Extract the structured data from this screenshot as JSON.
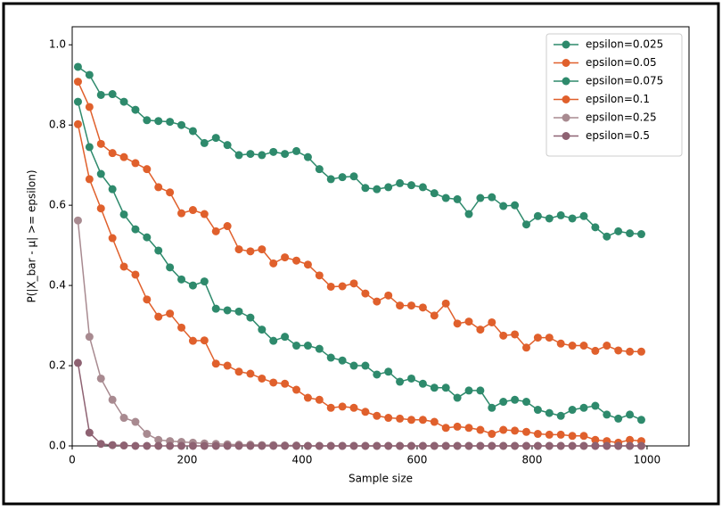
{
  "chart_data": {
    "type": "line",
    "xlabel": "Sample size",
    "ylabel": "P(|X_bar - μ| >= epsilon)",
    "x": [
      10,
      30,
      50,
      70,
      90,
      110,
      130,
      150,
      170,
      190,
      210,
      230,
      250,
      270,
      290,
      310,
      330,
      350,
      370,
      390,
      410,
      430,
      450,
      470,
      490,
      510,
      530,
      550,
      570,
      590,
      610,
      630,
      650,
      670,
      690,
      710,
      730,
      750,
      770,
      790,
      810,
      830,
      850,
      870,
      890,
      910,
      930,
      950,
      970,
      990
    ],
    "series": [
      {
        "name": "epsilon=0.025",
        "color": "#2e8a6c",
        "values": [
          0.945,
          0.925,
          0.875,
          0.877,
          0.858,
          0.838,
          0.812,
          0.81,
          0.808,
          0.8,
          0.785,
          0.755,
          0.768,
          0.75,
          0.725,
          0.728,
          0.725,
          0.733,
          0.728,
          0.735,
          0.72,
          0.69,
          0.665,
          0.67,
          0.672,
          0.643,
          0.64,
          0.645,
          0.655,
          0.65,
          0.645,
          0.63,
          0.618,
          0.615,
          0.578,
          0.618,
          0.62,
          0.598,
          0.6,
          0.552,
          0.573,
          0.567,
          0.575,
          0.567,
          0.573,
          0.545,
          0.522,
          0.535,
          0.53,
          0.528
        ]
      },
      {
        "name": "epsilon=0.05",
        "color": "#e0602c",
        "values": [
          0.908,
          0.845,
          0.753,
          0.73,
          0.72,
          0.705,
          0.69,
          0.645,
          0.632,
          0.58,
          0.588,
          0.578,
          0.535,
          0.548,
          0.49,
          0.485,
          0.49,
          0.455,
          0.47,
          0.462,
          0.452,
          0.425,
          0.397,
          0.398,
          0.405,
          0.38,
          0.36,
          0.375,
          0.35,
          0.35,
          0.345,
          0.325,
          0.355,
          0.305,
          0.31,
          0.29,
          0.308,
          0.275,
          0.278,
          0.245,
          0.27,
          0.27,
          0.255,
          0.25,
          0.25,
          0.237,
          0.25,
          0.238,
          0.235,
          0.235
        ]
      },
      {
        "name": "epsilon=0.075",
        "color": "#2e8a6c",
        "values": [
          0.858,
          0.745,
          0.678,
          0.64,
          0.577,
          0.54,
          0.52,
          0.487,
          0.445,
          0.415,
          0.4,
          0.41,
          0.342,
          0.338,
          0.335,
          0.32,
          0.29,
          0.262,
          0.272,
          0.25,
          0.25,
          0.242,
          0.22,
          0.213,
          0.2,
          0.2,
          0.178,
          0.185,
          0.16,
          0.168,
          0.155,
          0.145,
          0.145,
          0.12,
          0.138,
          0.138,
          0.095,
          0.11,
          0.115,
          0.11,
          0.09,
          0.082,
          0.075,
          0.09,
          0.095,
          0.1,
          0.078,
          0.068,
          0.078,
          0.065
        ]
      },
      {
        "name": "epsilon=0.1",
        "color": "#e0602c",
        "values": [
          0.802,
          0.665,
          0.592,
          0.518,
          0.447,
          0.427,
          0.365,
          0.322,
          0.33,
          0.295,
          0.262,
          0.263,
          0.205,
          0.2,
          0.185,
          0.18,
          0.168,
          0.158,
          0.155,
          0.14,
          0.12,
          0.115,
          0.095,
          0.098,
          0.095,
          0.085,
          0.075,
          0.07,
          0.068,
          0.065,
          0.065,
          0.06,
          0.045,
          0.048,
          0.045,
          0.04,
          0.03,
          0.04,
          0.038,
          0.035,
          0.03,
          0.028,
          0.028,
          0.025,
          0.025,
          0.015,
          0.012,
          0.008,
          0.015,
          0.012
        ]
      },
      {
        "name": "epsilon=0.25",
        "color": "#a88a90",
        "values": [
          0.562,
          0.272,
          0.168,
          0.115,
          0.07,
          0.06,
          0.03,
          0.015,
          0.012,
          0.01,
          0.008,
          0.006,
          0.005,
          0.004,
          0.003,
          0.003,
          0.002,
          0.002,
          0.001,
          0.001,
          0,
          0,
          0,
          0,
          0,
          0,
          0,
          0,
          0,
          0,
          0,
          0,
          0,
          0,
          0,
          0,
          0,
          0,
          0,
          0,
          0,
          0,
          0,
          0,
          0,
          0,
          0,
          0,
          0,
          0
        ]
      },
      {
        "name": "epsilon=0.5",
        "color": "#8e6272",
        "values": [
          0.207,
          0.033,
          0.005,
          0.002,
          0.001,
          0,
          0,
          0,
          0,
          0,
          0,
          0,
          0,
          0,
          0,
          0,
          0,
          0,
          0,
          0,
          0,
          0,
          0,
          0,
          0,
          0,
          0,
          0,
          0,
          0,
          0,
          0,
          0,
          0,
          0,
          0,
          0,
          0,
          0,
          0,
          0,
          0,
          0,
          0,
          0,
          0,
          0,
          0,
          0,
          0
        ]
      }
    ],
    "xlim": [
      0,
      1073
    ],
    "xticks": [
      0,
      200,
      400,
      600,
      800,
      1000
    ],
    "ylim": [
      0,
      1.045
    ],
    "yticks": [
      0.0,
      0.2,
      0.4,
      0.6,
      0.8,
      1.0
    ],
    "legend": "upper right"
  }
}
